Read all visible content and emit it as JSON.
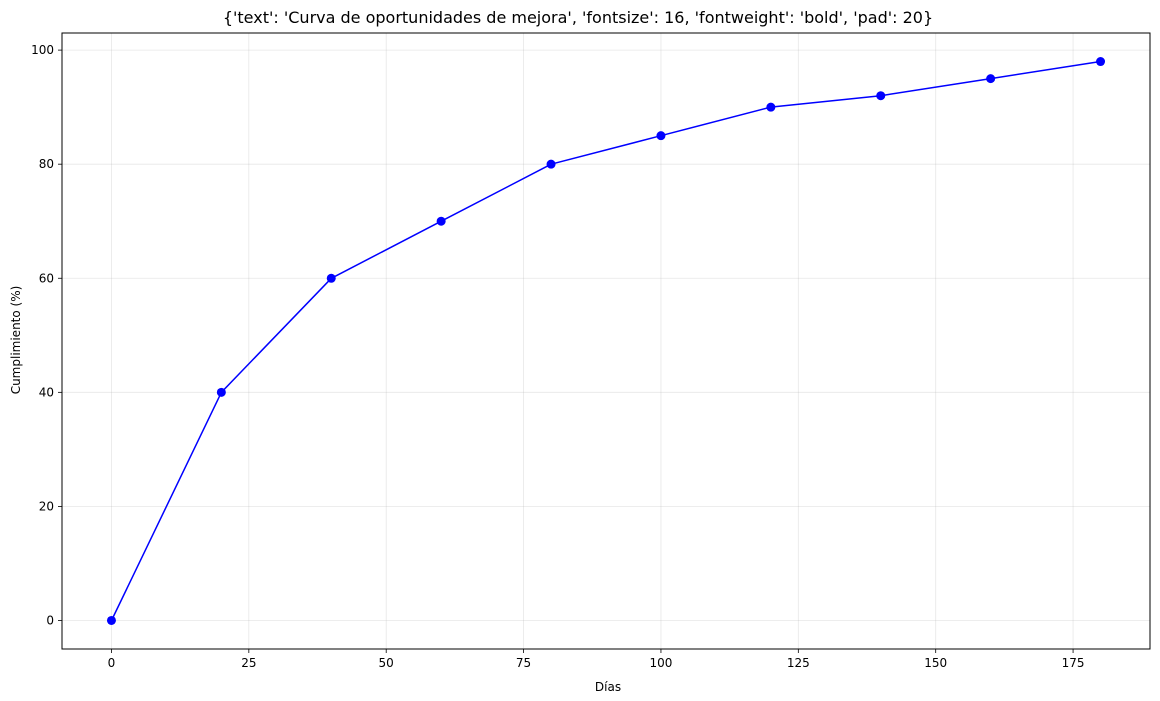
{
  "chart_data": {
    "type": "line",
    "title": "{'text': 'Curva de oportunidades de mejora', 'fontsize': 16, 'fontweight': 'bold', 'pad': 20}",
    "xlabel": "Días",
    "ylabel": "Cumplimiento (%)",
    "xlim": [
      -9,
      189
    ],
    "ylim": [
      -5,
      103
    ],
    "xticks": [
      0,
      25,
      50,
      75,
      100,
      125,
      150,
      175
    ],
    "yticks": [
      0,
      20,
      40,
      60,
      80,
      100
    ],
    "grid": true,
    "legend": "none",
    "series": [
      {
        "color": "#0000ff",
        "marker": "circle",
        "x": [
          0,
          20,
          40,
          60,
          80,
          100,
          120,
          140,
          160,
          180
        ],
        "y": [
          0,
          40,
          60,
          70,
          80,
          85,
          90,
          92,
          95,
          98
        ]
      }
    ]
  }
}
